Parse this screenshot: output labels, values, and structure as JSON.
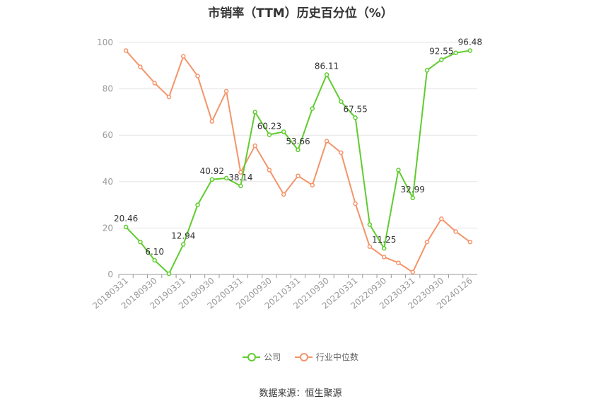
{
  "chart_data": {
    "type": "line",
    "title": "市销率（TTM）历史百分位（%）",
    "ylim": [
      0,
      100
    ],
    "yticks": [
      0,
      20,
      40,
      60,
      80,
      100
    ],
    "x_tick_labels": [
      "20180331",
      "20180930",
      "20190331",
      "20190930",
      "20200331",
      "20200930",
      "20210331",
      "20210930",
      "20220331",
      "20220930",
      "20230331",
      "20230930",
      "20240126"
    ],
    "grid": true,
    "legend_position": "bottom",
    "series": [
      {
        "name": "公司",
        "color": "#5fcc2e",
        "values": [
          20.46,
          14.0,
          6.1,
          0.3,
          12.94,
          30.0,
          40.92,
          41.5,
          38.14,
          70.0,
          60.23,
          61.5,
          53.66,
          71.5,
          86.11,
          74.5,
          67.55,
          21.5,
          11.25,
          45.0,
          32.99,
          88.0,
          92.55,
          95.5,
          96.48
        ],
        "labels": [
          "20.46",
          "",
          "6.10",
          "",
          "12.94",
          "",
          "40.92",
          "",
          "38.14",
          "",
          "60.23",
          "",
          "53.66",
          "",
          "86.11",
          "",
          "67.55",
          "",
          "11.25",
          "",
          "32.99",
          "",
          "92.55",
          "",
          "96.48"
        ]
      },
      {
        "name": "行业中位数",
        "color": "#f4946a",
        "values": [
          96.5,
          89.5,
          82.5,
          76.5,
          94.0,
          85.5,
          66.0,
          79.0,
          44.0,
          55.5,
          45.0,
          34.5,
          42.5,
          38.5,
          57.5,
          52.5,
          30.5,
          12.0,
          7.5,
          5.0,
          1.0,
          14.0,
          24.0,
          18.5,
          14.0
        ]
      }
    ]
  },
  "source": "数据来源：恒生聚源"
}
